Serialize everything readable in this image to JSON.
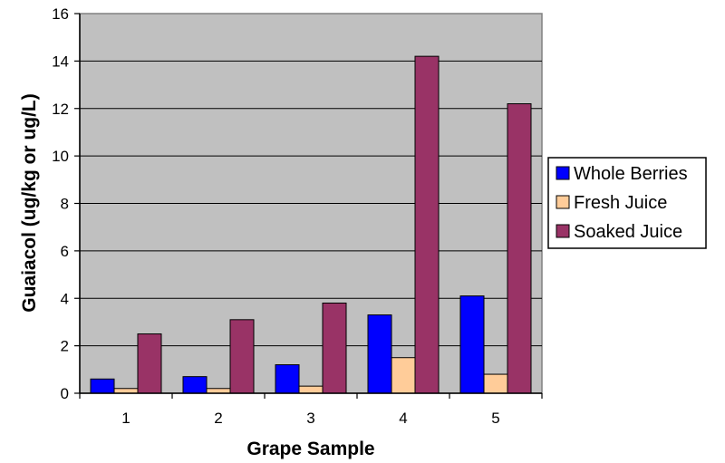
{
  "chart_data": {
    "type": "bar",
    "title": "",
    "xlabel": "Grape Sample",
    "ylabel": "Guaiacol (ug/kg or ug/L)",
    "categories": [
      "1",
      "2",
      "3",
      "4",
      "5"
    ],
    "ylim": [
      0,
      16
    ],
    "yticks": [
      "0",
      "2",
      "4",
      "6",
      "8",
      "10",
      "12",
      "14",
      "16"
    ],
    "grid": true,
    "legend_position": "right",
    "plot_background": "#c0c0c0",
    "series": [
      {
        "name": "Whole Berries",
        "color": "#0000ff",
        "values": [
          0.6,
          0.7,
          1.2,
          3.3,
          4.1
        ]
      },
      {
        "name": "Fresh Juice",
        "color": "#ffcc99",
        "values": [
          0.2,
          0.2,
          0.3,
          1.5,
          0.8
        ]
      },
      {
        "name": "Soaked Juice",
        "color": "#993366",
        "values": [
          2.5,
          3.1,
          3.8,
          14.2,
          12.2
        ]
      }
    ]
  }
}
